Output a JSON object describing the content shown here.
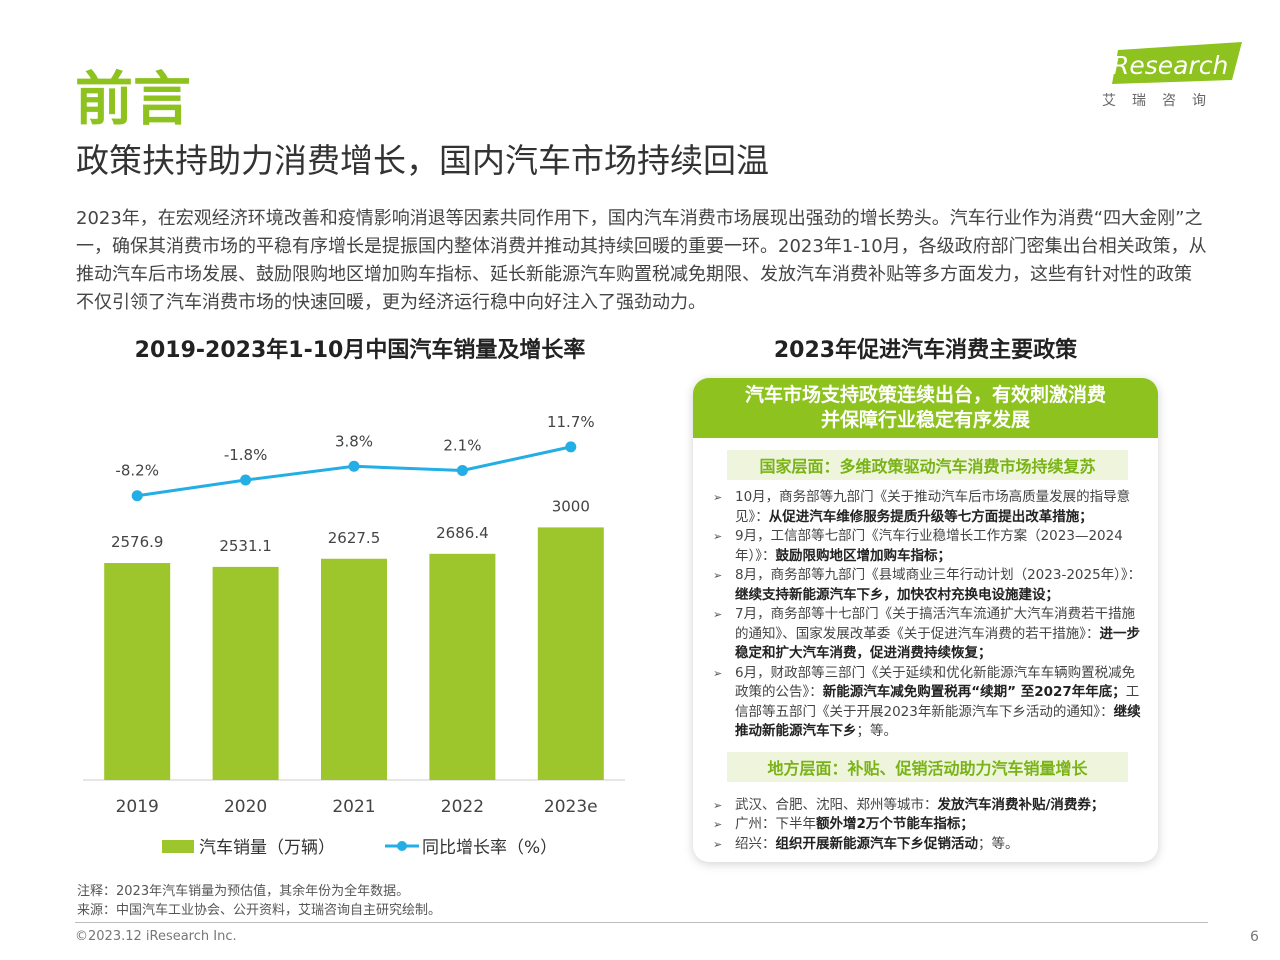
{
  "header": {
    "title": "前言",
    "subtitle": "政策扶持助力消费增长，国内汽车市场持续回温",
    "logo": "iResearch",
    "logo_cn": "艾瑞咨询"
  },
  "intro": "2023年，在宏观经济环境改善和疫情影响消退等因素共同作用下，国内汽车消费市场展现出强劲的增长势头。汽车行业作为消费“四大金刚”之一，确保其消费市场的平稳有序增长是提振国内整体消费并推动其持续回暖的重要一环。2023年1-10月，各级政府部门密集出台相关政策，从推动汽车后市场发展、鼓励限购地区增加购车指标、延长新能源汽车购置税减免期限、发放汽车消费补贴等多方面发力，这些有针对性的政策不仅引领了汽车消费市场的快速回暖，更为经济运行稳中向好注入了强劲动力。",
  "chart_data": {
    "type": "bar",
    "title": "2019-2023年1-10月中国汽车销量及增长率",
    "categories": [
      "2019",
      "2020",
      "2021",
      "2022",
      "2023e"
    ],
    "series": [
      {
        "name": "汽车销量（万辆）",
        "type": "bar",
        "color": "#9dc62d",
        "values": [
          2576.9,
          2531.1,
          2627.5,
          2686.4,
          3000
        ]
      },
      {
        "name": "同比增长率（%）",
        "type": "line",
        "axis": "y2",
        "color": "#23aee5",
        "values": [
          -8.2,
          -1.8,
          3.8,
          2.1,
          11.7
        ],
        "value_labels": [
          "-8.2%",
          "-1.8%",
          "3.8%",
          "2.1%",
          "11.7%"
        ]
      }
    ],
    "ylim": [
      0,
      5000
    ],
    "y2lim": [
      -124,
      47.5
    ]
  },
  "policy": {
    "title": "2023年促进汽车消费主要政策",
    "box_title": [
      "汽车市场支持政策连续出台，有效刺激消费",
      "并保障行业稳定有序发展"
    ],
    "national": {
      "title": "国家层面：多维政策驱动汽车消费市场持续复苏",
      "items": [
        [
          {
            "text": "10月，商务部等九部门《关于推动汽车后市场高质量发展的指导意见》：",
            "bold": false
          },
          {
            "text": "从促进汽车维修服务提质升级等七方面提出改革措施；",
            "bold": true
          }
        ],
        [
          {
            "text": "9月，工信部等七部门《汽车行业稳增长工作方案（2023—2024年）》：",
            "bold": false
          },
          {
            "text": "鼓励限购地区增加购车指标；",
            "bold": true
          }
        ],
        [
          {
            "text": "8月，商务部等九部门《县域商业三年行动计划（2023-2025年）》：",
            "bold": false
          },
          {
            "text": "继续支持新能源汽车下乡，加快农村充换电设施建设；",
            "bold": true
          }
        ],
        [
          {
            "text": "7月，商务部等十七部门《关于搞活汽车流通扩大汽车消费若干措施的通知》、国家发展改革委《关于促进汽车消费的若干措施》：",
            "bold": false
          },
          {
            "text": "进一步稳定和扩大汽车消费，促进消费持续恢复；",
            "bold": true
          }
        ],
        [
          {
            "text": "6月，财政部等三部门《关于延续和优化新能源汽车车辆购置税减免政策的公告》：",
            "bold": false
          },
          {
            "text": "新能源汽车减免购置税再“续期” 至2027年年底；",
            "bold": true
          },
          {
            "text": "工信部等五部门《关于开展2023年新能源汽车下乡活动的通知》：",
            "bold": false
          },
          {
            "text": "继续推动新能源汽车下乡",
            "bold": true
          },
          {
            "text": "；等。",
            "bold": false
          }
        ]
      ]
    },
    "local": {
      "title": "地方层面：补贴、促销活动助力汽车销量增长",
      "items": [
        [
          {
            "text": "武汉、合肥、沈阳、郑州等城市：",
            "bold": false
          },
          {
            "text": "发放汽车消费补贴/消费券；",
            "bold": true
          }
        ],
        [
          {
            "text": "广州：下半年",
            "bold": false
          },
          {
            "text": "额外增2万个节能车指标；",
            "bold": true
          }
        ],
        [
          {
            "text": "绍兴：",
            "bold": false
          },
          {
            "text": "组织开展新能源汽车下乡促销活动",
            "bold": true
          },
          {
            "text": "；等。",
            "bold": false
          }
        ]
      ]
    }
  },
  "footer": {
    "note": "注释：2023年汽车销量为预估值，其余年份为全年数据。",
    "source": "来源：中国汽车工业协会、公开资料，艾瑞咨询自主研究绘制。",
    "copyright": "©2023.12 iResearch Inc.",
    "page": "6"
  }
}
